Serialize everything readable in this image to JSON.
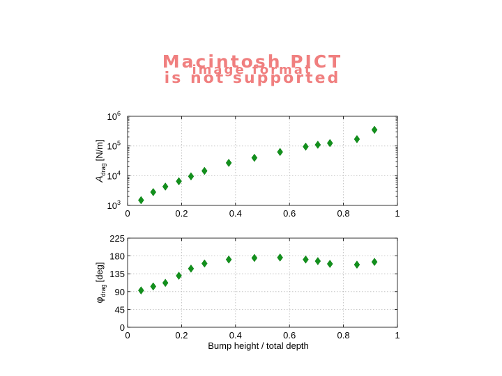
{
  "banner": {
    "lines": [
      "Macintosh PICT",
      "image format",
      "is not supported"
    ],
    "color": "#f07f7f"
  },
  "marker_color": "#12901c",
  "chart_data": [
    {
      "type": "scatter",
      "ylabel_main": "A",
      "ylabel_sub": "drag",
      "ylabel_unit": "[N/m]",
      "xlabel": "",
      "yscale": "log",
      "xlim": [
        0,
        1
      ],
      "ylim": [
        1000,
        1000000
      ],
      "xticks": [
        "0",
        "0.2",
        "0.4",
        "0.6",
        "0.8",
        "1"
      ],
      "yticks": [
        {
          "base": "10",
          "exp": "3",
          "value": 1000
        },
        {
          "base": "10",
          "exp": "4",
          "value": 10000
        },
        {
          "base": "10",
          "exp": "5",
          "value": 100000
        },
        {
          "base": "10",
          "exp": "6",
          "value": 1000000
        }
      ],
      "grid": true,
      "x": [
        0.05,
        0.095,
        0.14,
        0.19,
        0.235,
        0.285,
        0.375,
        0.47,
        0.565,
        0.66,
        0.705,
        0.75,
        0.85,
        0.915
      ],
      "y": [
        1500,
        2800,
        4300,
        6500,
        9500,
        14500,
        27000,
        40000,
        63000,
        95000,
        110000,
        125000,
        170000,
        350000
      ]
    },
    {
      "type": "scatter",
      "ylabel_main": "φ",
      "ylabel_sub": "drag",
      "ylabel_unit": "[deg]",
      "xlabel": "Bump height / total depth",
      "yscale": "linear",
      "xlim": [
        0,
        1
      ],
      "ylim": [
        0,
        225
      ],
      "xticks": [
        "0",
        "0.2",
        "0.4",
        "0.6",
        "0.8",
        "1"
      ],
      "yticks": [
        {
          "base": "0",
          "value": 0
        },
        {
          "base": "45",
          "value": 45
        },
        {
          "base": "90",
          "value": 90
        },
        {
          "base": "135",
          "value": 135
        },
        {
          "base": "180",
          "value": 180
        },
        {
          "base": "225",
          "value": 225
        }
      ],
      "grid": true,
      "x": [
        0.05,
        0.095,
        0.14,
        0.19,
        0.235,
        0.285,
        0.375,
        0.47,
        0.565,
        0.66,
        0.705,
        0.75,
        0.85,
        0.915
      ],
      "y": [
        93,
        103,
        112,
        130,
        148,
        161,
        171,
        175,
        176,
        171,
        167,
        160,
        158,
        165
      ]
    }
  ]
}
